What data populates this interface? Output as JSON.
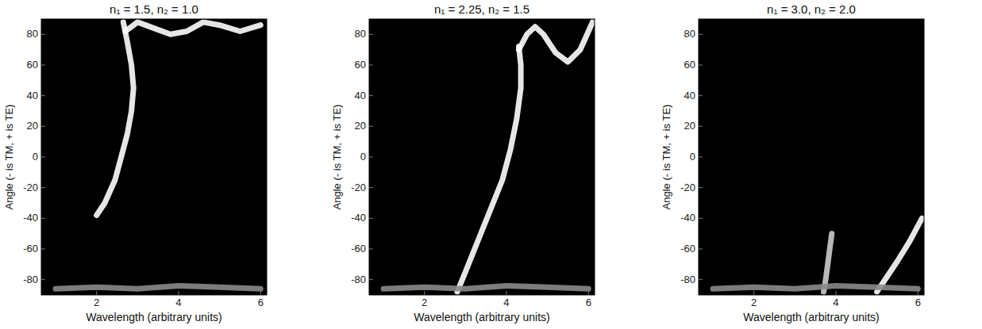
{
  "chart_data": [
    {
      "type": "line",
      "title": "n₁ = 1.5, n₂ = 1.0",
      "x_label": "Wavelength (arbitrary units)",
      "y_label": "Angle (- is TM, + is TE)",
      "xlim": [
        0.65,
        6.15
      ],
      "xticks": [
        2,
        4,
        6
      ],
      "ylim": [
        -90,
        90
      ],
      "yticks": [
        -80,
        -60,
        -40,
        -20,
        0,
        20,
        40,
        60,
        80
      ],
      "series": [
        {
          "color": "#ffffff",
          "x": [
            2.0,
            2.2,
            2.45,
            2.6,
            2.75,
            2.85,
            2.9,
            2.85,
            2.75,
            2.65
          ],
          "values": [
            -38,
            -30,
            -15,
            0,
            15,
            30,
            45,
            60,
            75,
            88
          ]
        },
        {
          "color": "#ffffff",
          "x": [
            2.7,
            3.0,
            3.4,
            3.8,
            4.2,
            4.6,
            5.0,
            5.5,
            6.0
          ],
          "values": [
            82,
            88,
            84,
            80,
            82,
            88,
            86,
            82,
            86
          ]
        },
        {
          "color": "#8a8a8a",
          "x": [
            1.0,
            2.0,
            3.0,
            4.0,
            5.0,
            6.0
          ],
          "values": [
            -86,
            -85,
            -86,
            -84,
            -85,
            -86
          ]
        }
      ]
    },
    {
      "type": "line",
      "title": "n₁ = 2.25, n₂ = 1.5",
      "x_label": "Wavelength (arbitrary units)",
      "y_label": "Angle (- is TM, + is TE)",
      "xlim": [
        0.65,
        6.15
      ],
      "xticks": [
        2,
        4,
        6
      ],
      "ylim": [
        -90,
        90
      ],
      "yticks": [
        -80,
        -60,
        -40,
        -20,
        0,
        20,
        40,
        60,
        80
      ],
      "series": [
        {
          "color": "#ffffff",
          "x": [
            2.8,
            3.0,
            3.3,
            3.6,
            3.9,
            4.1,
            4.25,
            4.35,
            4.35,
            4.3
          ],
          "values": [
            -88,
            -75,
            -55,
            -35,
            -15,
            5,
            25,
            45,
            60,
            72
          ]
        },
        {
          "color": "#ffffff",
          "x": [
            4.3,
            4.5,
            4.7,
            4.9,
            5.2,
            5.5,
            5.8,
            6.0,
            6.1
          ],
          "values": [
            70,
            80,
            85,
            80,
            68,
            62,
            70,
            82,
            88
          ]
        },
        {
          "color": "#8a8a8a",
          "x": [
            1.0,
            2.0,
            3.0,
            4.0,
            5.0,
            6.0
          ],
          "values": [
            -86,
            -85,
            -86,
            -84,
            -85,
            -86
          ]
        }
      ]
    },
    {
      "type": "line",
      "title": "n₁ = 3.0, n₂ = 2.0",
      "x_label": "Wavelength (arbitrary units)",
      "y_label": "Angle (- is TM, + is TE)",
      "xlim": [
        0.65,
        6.15
      ],
      "xticks": [
        2,
        4,
        6
      ],
      "ylim": [
        -90,
        90
      ],
      "yticks": [
        -80,
        -60,
        -40,
        -20,
        0,
        20,
        40,
        60,
        80
      ],
      "series": [
        {
          "color": "#ffffff",
          "x": [
            5.0,
            5.2,
            5.5,
            5.8,
            6.1
          ],
          "values": [
            -88,
            -80,
            -68,
            -55,
            -40
          ]
        },
        {
          "color": "#cccccc",
          "x": [
            3.7,
            3.75,
            3.8,
            3.85,
            3.9
          ],
          "values": [
            -88,
            -80,
            -70,
            -60,
            -50
          ]
        },
        {
          "color": "#8a8a8a",
          "x": [
            1.0,
            2.0,
            3.0,
            4.0,
            5.0,
            6.0
          ],
          "values": [
            -86,
            -85,
            -86,
            -84,
            -85,
            -86
          ]
        }
      ]
    }
  ]
}
